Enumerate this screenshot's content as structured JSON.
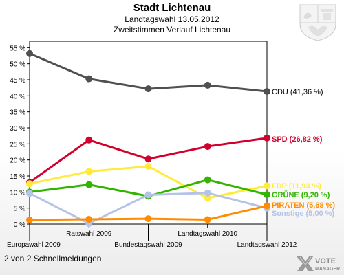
{
  "header": {
    "title": "Stadt Lichtenau",
    "subtitle1": "Landtagswahl 13.05.2012",
    "subtitle2": "Zweitstimmen Verlauf Lichtenau"
  },
  "footer": {
    "text": "2 von 2 Schnellmeldungen"
  },
  "brand": {
    "line1": "VOTE",
    "line2": "MANAGER",
    "icon": "vote-manager-x-logo"
  },
  "crest": {
    "icon": "state-coat-of-arms"
  },
  "chart_data": {
    "type": "line",
    "categories": [
      "Europawahl 2009",
      "Ratswahl 2009",
      "Bundestagswahl 2009",
      "Landtagswahl 2010",
      "Landtagswahl 2012"
    ],
    "ylim": [
      0,
      57
    ],
    "yticks": [
      "0 %",
      "5 %",
      "10 %",
      "15 %",
      "20 %",
      "25 %",
      "30 %",
      "35 %",
      "40 %",
      "45 %",
      "50 %",
      "55 %"
    ],
    "grid": false,
    "series": [
      {
        "name": "CDU",
        "label": "CDU (41,36 %)",
        "color": "#505050",
        "values": [
          53.2,
          45.3,
          42.2,
          43.3,
          41.36
        ]
      },
      {
        "name": "SPD",
        "label": "SPD (26,82 %)",
        "color": "#d2002d",
        "values": [
          13.0,
          26.2,
          20.3,
          24.2,
          26.82
        ]
      },
      {
        "name": "FDP",
        "label": "FDP (11,93 %)",
        "color": "#ffeb3b",
        "values": [
          12.6,
          16.4,
          18.0,
          8.1,
          11.93
        ]
      },
      {
        "name": "GRÜNE",
        "label": "GRÜNE (9,20 %)",
        "color": "#32b400",
        "values": [
          10.0,
          12.3,
          8.7,
          13.8,
          9.2
        ]
      },
      {
        "name": "Sonstige",
        "label": "Sonstige (5,00 %)",
        "color": "#b4c3e6",
        "values": [
          9.6,
          0.2,
          9.1,
          9.7,
          5.0
        ]
      },
      {
        "name": "PIRATEN",
        "label": "PIRATEN (5,68 %)",
        "color": "#ff8c00",
        "values": [
          1.3,
          1.5,
          1.7,
          1.4,
          5.68
        ]
      }
    ]
  }
}
